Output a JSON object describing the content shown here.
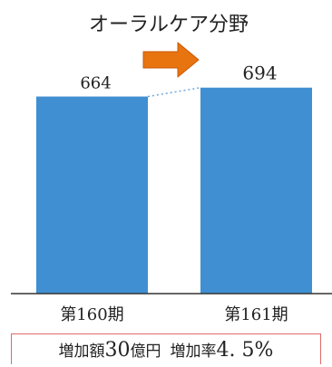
{
  "chart_data": {
    "type": "bar",
    "title": "オーラルケア分野",
    "categories": [
      "第160期",
      "第161期"
    ],
    "values": [
      664,
      694
    ],
    "value_labels": [
      "664",
      "694"
    ],
    "ylim": [
      0,
      700
    ],
    "grid": false,
    "legend": "none",
    "annotations": {
      "arrow": "increase-arrow"
    }
  },
  "summary": {
    "increase_amount_label": "増加額",
    "increase_amount_value": "30",
    "increase_amount_unit": "億円",
    "increase_rate_label": "増加率",
    "increase_rate_value": "4. 5%"
  },
  "colors": {
    "bar": "#3f8fd2",
    "arrow_fill": "#e8740f",
    "arrow_stroke": "#c75a08",
    "dotted_line": "#6aa8dd",
    "box_border": "#e06a6a",
    "axis": "#333333",
    "text": "#222222"
  }
}
